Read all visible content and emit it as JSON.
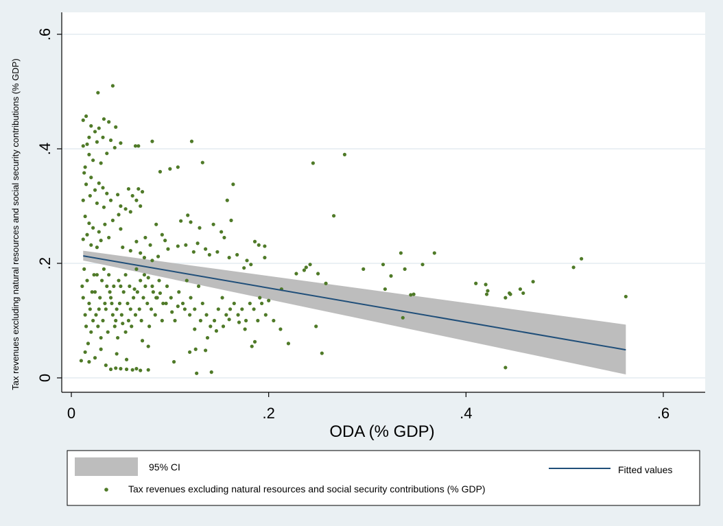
{
  "chart_data": {
    "type": "scatter",
    "xlabel": "ODA (% GDP)",
    "ylabel": "Tax revenues excluding natural resources and social security contributions  (% GDP)",
    "xlim": [
      0,
      0.6
    ],
    "ylim": [
      0,
      0.6
    ],
    "xticks": [
      0,
      0.2,
      0.4,
      0.6
    ],
    "xtick_labels": [
      "0",
      ".2",
      ".4",
      ".6"
    ],
    "yticks": [
      0,
      0.2,
      0.4,
      0.6
    ],
    "ytick_labels": [
      "0",
      ".2",
      ".4",
      ".6"
    ],
    "grid": "horizontal",
    "colors": {
      "background": "#eaf0f3",
      "plot_bg": "#ffffff",
      "points": "#4f7a28",
      "fit_line": "#1f4e79",
      "ci_band": "#bdbdbd",
      "grid": "#e3ecf0"
    },
    "series": [
      {
        "name": "Tax revenues excluding natural resources and social security contributions (% GDP)",
        "kind": "scatter",
        "points": [
          [
            0.027,
            0.498
          ],
          [
            0.042,
            0.51
          ],
          [
            0.015,
            0.457
          ],
          [
            0.012,
            0.45
          ],
          [
            0.033,
            0.452
          ],
          [
            0.02,
            0.44
          ],
          [
            0.028,
            0.436
          ],
          [
            0.038,
            0.447
          ],
          [
            0.045,
            0.438
          ],
          [
            0.032,
            0.42
          ],
          [
            0.024,
            0.43
          ],
          [
            0.018,
            0.42
          ],
          [
            0.016,
            0.408
          ],
          [
            0.026,
            0.412
          ],
          [
            0.012,
            0.405
          ],
          [
            0.04,
            0.415
          ],
          [
            0.05,
            0.41
          ],
          [
            0.068,
            0.405
          ],
          [
            0.082,
            0.413
          ],
          [
            0.122,
            0.413
          ],
          [
            0.044,
            0.402
          ],
          [
            0.036,
            0.392
          ],
          [
            0.065,
            0.405
          ],
          [
            0.018,
            0.39
          ],
          [
            0.022,
            0.38
          ],
          [
            0.03,
            0.375
          ],
          [
            0.014,
            0.368
          ],
          [
            0.013,
            0.358
          ],
          [
            0.02,
            0.35
          ],
          [
            0.028,
            0.34
          ],
          [
            0.015,
            0.338
          ],
          [
            0.024,
            0.328
          ],
          [
            0.032,
            0.332
          ],
          [
            0.036,
            0.322
          ],
          [
            0.019,
            0.318
          ],
          [
            0.012,
            0.31
          ],
          [
            0.026,
            0.305
          ],
          [
            0.033,
            0.298
          ],
          [
            0.04,
            0.31
          ],
          [
            0.047,
            0.32
          ],
          [
            0.05,
            0.3
          ],
          [
            0.058,
            0.33
          ],
          [
            0.062,
            0.318
          ],
          [
            0.068,
            0.33
          ],
          [
            0.072,
            0.325
          ],
          [
            0.066,
            0.31
          ],
          [
            0.055,
            0.295
          ],
          [
            0.06,
            0.29
          ],
          [
            0.07,
            0.3
          ],
          [
            0.048,
            0.285
          ],
          [
            0.042,
            0.275
          ],
          [
            0.014,
            0.282
          ],
          [
            0.018,
            0.27
          ],
          [
            0.022,
            0.262
          ],
          [
            0.028,
            0.255
          ],
          [
            0.016,
            0.25
          ],
          [
            0.034,
            0.268
          ],
          [
            0.038,
            0.245
          ],
          [
            0.03,
            0.24
          ],
          [
            0.012,
            0.242
          ],
          [
            0.02,
            0.232
          ],
          [
            0.026,
            0.228
          ],
          [
            0.05,
            0.26
          ],
          [
            0.075,
            0.245
          ],
          [
            0.08,
            0.232
          ],
          [
            0.086,
            0.268
          ],
          [
            0.092,
            0.25
          ],
          [
            0.095,
            0.24
          ],
          [
            0.052,
            0.228
          ],
          [
            0.06,
            0.222
          ],
          [
            0.066,
            0.238
          ],
          [
            0.07,
            0.218
          ],
          [
            0.074,
            0.21
          ],
          [
            0.082,
            0.205
          ],
          [
            0.088,
            0.212
          ],
          [
            0.1,
            0.365
          ],
          [
            0.108,
            0.368
          ],
          [
            0.09,
            0.36
          ],
          [
            0.133,
            0.376
          ],
          [
            0.111,
            0.274
          ],
          [
            0.118,
            0.284
          ],
          [
            0.121,
            0.272
          ],
          [
            0.13,
            0.262
          ],
          [
            0.144,
            0.268
          ],
          [
            0.152,
            0.255
          ],
          [
            0.162,
            0.275
          ],
          [
            0.158,
            0.31
          ],
          [
            0.164,
            0.338
          ],
          [
            0.155,
            0.245
          ],
          [
            0.108,
            0.23
          ],
          [
            0.116,
            0.232
          ],
          [
            0.124,
            0.22
          ],
          [
            0.128,
            0.235
          ],
          [
            0.136,
            0.225
          ],
          [
            0.14,
            0.215
          ],
          [
            0.148,
            0.22
          ],
          [
            0.16,
            0.21
          ],
          [
            0.168,
            0.215
          ],
          [
            0.178,
            0.205
          ],
          [
            0.186,
            0.238
          ],
          [
            0.19,
            0.232
          ],
          [
            0.196,
            0.23
          ],
          [
            0.196,
            0.21
          ],
          [
            0.182,
            0.198
          ],
          [
            0.175,
            0.192
          ],
          [
            0.098,
            0.225
          ],
          [
            0.245,
            0.375
          ],
          [
            0.277,
            0.39
          ],
          [
            0.266,
            0.283
          ],
          [
            0.238,
            0.193
          ],
          [
            0.242,
            0.198
          ],
          [
            0.236,
            0.188
          ],
          [
            0.228,
            0.182
          ],
          [
            0.25,
            0.182
          ],
          [
            0.258,
            0.165
          ],
          [
            0.296,
            0.19
          ],
          [
            0.316,
            0.198
          ],
          [
            0.324,
            0.178
          ],
          [
            0.318,
            0.155
          ],
          [
            0.334,
            0.218
          ],
          [
            0.338,
            0.19
          ],
          [
            0.344,
            0.145
          ],
          [
            0.347,
            0.146
          ],
          [
            0.356,
            0.198
          ],
          [
            0.368,
            0.218
          ],
          [
            0.336,
            0.105
          ],
          [
            0.41,
            0.165
          ],
          [
            0.42,
            0.163
          ],
          [
            0.422,
            0.152
          ],
          [
            0.421,
            0.146
          ],
          [
            0.44,
            0.14
          ],
          [
            0.445,
            0.146
          ],
          [
            0.444,
            0.148
          ],
          [
            0.455,
            0.155
          ],
          [
            0.458,
            0.148
          ],
          [
            0.468,
            0.168
          ],
          [
            0.509,
            0.193
          ],
          [
            0.517,
            0.208
          ],
          [
            0.562,
            0.142
          ],
          [
            0.44,
            0.018
          ],
          [
            0.248,
            0.09
          ],
          [
            0.254,
            0.043
          ],
          [
            0.205,
            0.1
          ],
          [
            0.212,
            0.085
          ],
          [
            0.22,
            0.06
          ],
          [
            0.213,
            0.155
          ],
          [
            0.2,
            0.135
          ],
          [
            0.191,
            0.14
          ],
          [
            0.186,
            0.063
          ],
          [
            0.183,
            0.055
          ],
          [
            0.176,
            0.085
          ],
          [
            0.17,
            0.097
          ],
          [
            0.16,
            0.102
          ],
          [
            0.154,
            0.09
          ],
          [
            0.147,
            0.082
          ],
          [
            0.138,
            0.07
          ],
          [
            0.131,
            0.1
          ],
          [
            0.125,
            0.085
          ],
          [
            0.12,
            0.11
          ],
          [
            0.115,
            0.12
          ],
          [
            0.108,
            0.125
          ],
          [
            0.102,
            0.115
          ],
          [
            0.096,
            0.13
          ],
          [
            0.092,
            0.1
          ],
          [
            0.09,
            0.148
          ],
          [
            0.086,
            0.14
          ],
          [
            0.082,
            0.16
          ],
          [
            0.078,
            0.175
          ],
          [
            0.074,
            0.18
          ],
          [
            0.07,
            0.17
          ],
          [
            0.066,
            0.19
          ],
          [
            0.064,
            0.155
          ],
          [
            0.06,
            0.12
          ],
          [
            0.058,
            0.1
          ],
          [
            0.055,
            0.08
          ],
          [
            0.052,
            0.095
          ],
          [
            0.05,
            0.16
          ],
          [
            0.048,
            0.17
          ],
          [
            0.046,
            0.12
          ],
          [
            0.044,
            0.09
          ],
          [
            0.042,
            0.11
          ],
          [
            0.04,
            0.14
          ],
          [
            0.038,
            0.18
          ],
          [
            0.036,
            0.16
          ],
          [
            0.034,
            0.13
          ],
          [
            0.032,
            0.1
          ],
          [
            0.03,
            0.07
          ],
          [
            0.028,
            0.12
          ],
          [
            0.026,
            0.18
          ],
          [
            0.024,
            0.15
          ],
          [
            0.022,
            0.1
          ],
          [
            0.02,
            0.08
          ],
          [
            0.018,
            0.13
          ],
          [
            0.016,
            0.17
          ],
          [
            0.014,
            0.11
          ],
          [
            0.012,
            0.14
          ],
          [
            0.011,
            0.16
          ],
          [
            0.013,
            0.19
          ],
          [
            0.015,
            0.09
          ],
          [
            0.017,
            0.06
          ],
          [
            0.019,
            0.12
          ],
          [
            0.021,
            0.15
          ],
          [
            0.023,
            0.18
          ],
          [
            0.025,
            0.11
          ],
          [
            0.027,
            0.09
          ],
          [
            0.029,
            0.14
          ],
          [
            0.031,
            0.17
          ],
          [
            0.033,
            0.19
          ],
          [
            0.035,
            0.12
          ],
          [
            0.037,
            0.08
          ],
          [
            0.039,
            0.15
          ],
          [
            0.041,
            0.13
          ],
          [
            0.043,
            0.16
          ],
          [
            0.045,
            0.1
          ],
          [
            0.047,
            0.07
          ],
          [
            0.049,
            0.13
          ],
          [
            0.051,
            0.11
          ],
          [
            0.053,
            0.15
          ],
          [
            0.055,
            0.18
          ],
          [
            0.057,
            0.13
          ],
          [
            0.059,
            0.16
          ],
          [
            0.061,
            0.09
          ],
          [
            0.063,
            0.14
          ],
          [
            0.065,
            0.11
          ],
          [
            0.067,
            0.15
          ],
          [
            0.069,
            0.12
          ],
          [
            0.071,
            0.1
          ],
          [
            0.073,
            0.14
          ],
          [
            0.075,
            0.16
          ],
          [
            0.077,
            0.13
          ],
          [
            0.079,
            0.09
          ],
          [
            0.081,
            0.12
          ],
          [
            0.083,
            0.15
          ],
          [
            0.085,
            0.11
          ],
          [
            0.087,
            0.14
          ],
          [
            0.089,
            0.17
          ],
          [
            0.093,
            0.13
          ],
          [
            0.097,
            0.16
          ],
          [
            0.101,
            0.14
          ],
          [
            0.105,
            0.1
          ],
          [
            0.109,
            0.15
          ],
          [
            0.113,
            0.13
          ],
          [
            0.117,
            0.17
          ],
          [
            0.121,
            0.14
          ],
          [
            0.125,
            0.12
          ],
          [
            0.129,
            0.16
          ],
          [
            0.133,
            0.13
          ],
          [
            0.137,
            0.11
          ],
          [
            0.141,
            0.09
          ],
          [
            0.145,
            0.1
          ],
          [
            0.149,
            0.12
          ],
          [
            0.153,
            0.14
          ],
          [
            0.157,
            0.11
          ],
          [
            0.161,
            0.12
          ],
          [
            0.165,
            0.13
          ],
          [
            0.169,
            0.11
          ],
          [
            0.173,
            0.12
          ],
          [
            0.177,
            0.1
          ],
          [
            0.181,
            0.13
          ],
          [
            0.185,
            0.12
          ],
          [
            0.189,
            0.1
          ],
          [
            0.193,
            0.13
          ],
          [
            0.197,
            0.11
          ],
          [
            0.01,
            0.03
          ],
          [
            0.014,
            0.045
          ],
          [
            0.018,
            0.028
          ],
          [
            0.024,
            0.035
          ],
          [
            0.03,
            0.05
          ],
          [
            0.035,
            0.022
          ],
          [
            0.04,
            0.015
          ],
          [
            0.045,
            0.017
          ],
          [
            0.05,
            0.016
          ],
          [
            0.056,
            0.015
          ],
          [
            0.062,
            0.014
          ],
          [
            0.066,
            0.016
          ],
          [
            0.07,
            0.013
          ],
          [
            0.078,
            0.014
          ],
          [
            0.104,
            0.028
          ],
          [
            0.12,
            0.045
          ],
          [
            0.126,
            0.05
          ],
          [
            0.136,
            0.048
          ],
          [
            0.142,
            0.01
          ],
          [
            0.127,
            0.008
          ],
          [
            0.056,
            0.032
          ],
          [
            0.046,
            0.042
          ],
          [
            0.072,
            0.065
          ],
          [
            0.078,
            0.055
          ]
        ]
      },
      {
        "name": "Fitted values",
        "kind": "line",
        "x": [
          0.012,
          0.562
        ],
        "y": [
          0.213,
          0.049
        ]
      },
      {
        "name": "95% CI",
        "kind": "band",
        "x": [
          0.012,
          0.562
        ],
        "lower": [
          0.205,
          0.006
        ],
        "upper": [
          0.222,
          0.093
        ]
      }
    ],
    "legend": {
      "placement": "bottom",
      "entries": [
        "95% CI",
        "Fitted values",
        "Tax revenues excluding natural resources and social security contributions (% GDP)"
      ]
    }
  }
}
